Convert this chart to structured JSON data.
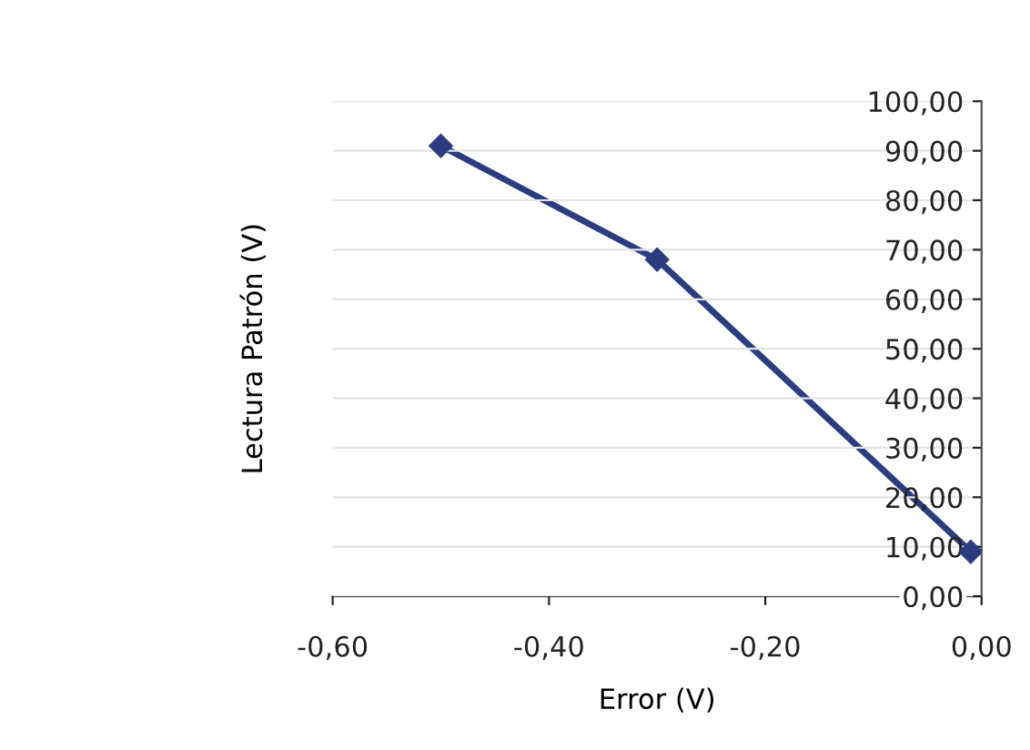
{
  "chart_data": {
    "type": "line",
    "xlabel": "Error (V)",
    "ylabel": "Lectura Patrón (V)",
    "x": [
      -0.5,
      -0.3,
      -0.01
    ],
    "series": [
      {
        "color": "#2b3d80",
        "values": [
          91,
          68,
          9
        ]
      }
    ],
    "xlim": [
      -0.6,
      0
    ],
    "xticks": [
      {
        "value": -0.6,
        "label": "-0,60"
      },
      {
        "value": -0.4,
        "label": "-0,40"
      },
      {
        "value": -0.2,
        "label": "-0,20"
      },
      {
        "value": 0,
        "label": "0,00"
      }
    ],
    "ylim": [
      0,
      100
    ],
    "yticks": [
      {
        "value": 0,
        "label": "0,00"
      },
      {
        "value": 10,
        "label": "10,00"
      },
      {
        "value": 20,
        "label": "20,00"
      },
      {
        "value": 30,
        "label": "30,00"
      },
      {
        "value": 40,
        "label": "40,00"
      },
      {
        "value": 50,
        "label": "50,00"
      },
      {
        "value": 60,
        "label": "60,00"
      },
      {
        "value": 70,
        "label": "70,00"
      },
      {
        "value": 80,
        "label": "80,00"
      },
      {
        "value": 90,
        "label": "90,00"
      },
      {
        "value": 100,
        "label": "100,00"
      }
    ],
    "grid": "y",
    "marker": "diamond",
    "line_style": "solid",
    "legend": false
  }
}
